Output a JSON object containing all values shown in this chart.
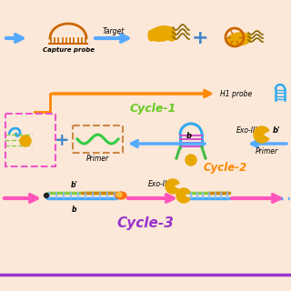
{
  "bg_color": "#fce8d8",
  "cycle1_label": "Cycle-1",
  "cycle2_label": "Cycle-2",
  "cycle3_label": "Cycle-3",
  "cycle1_color": "#66cc22",
  "cycle2_color": "#ff8800",
  "cycle3_color": "#9933cc",
  "capture_probe_label": "Capture probe",
  "target_label": "Target",
  "h1_probe_label": "H1 probe",
  "primer_label": "Primer",
  "exo3_label": "Exo-III",
  "arrow_blue": "#55aaff",
  "arrow_pink": "#ff55bb",
  "arrow_orange": "#ff8800",
  "probe_orange": "#cc6600",
  "bacteria_gold": "#e8a800",
  "enzyme_gold": "#cc8800",
  "hairpin_blue": "#33aaee",
  "hairpin_stem": "#cc55cc",
  "hairpin_tail_green": "#44bb44",
  "hairpin_tail_gold": "#cc8800",
  "dashed_box_tan": "#cc8844",
  "primer_wave_color": "#33cc44",
  "dashed_pink_color": "#ee55cc",
  "bottom_line_purple": "#9933cc",
  "line_blue": "#44aaff",
  "line_green": "#88cc44",
  "line_gold": "#cc8800",
  "dot_dark": "#222222",
  "orange_glow": "#ff6600",
  "plus_color": "#4488cc"
}
